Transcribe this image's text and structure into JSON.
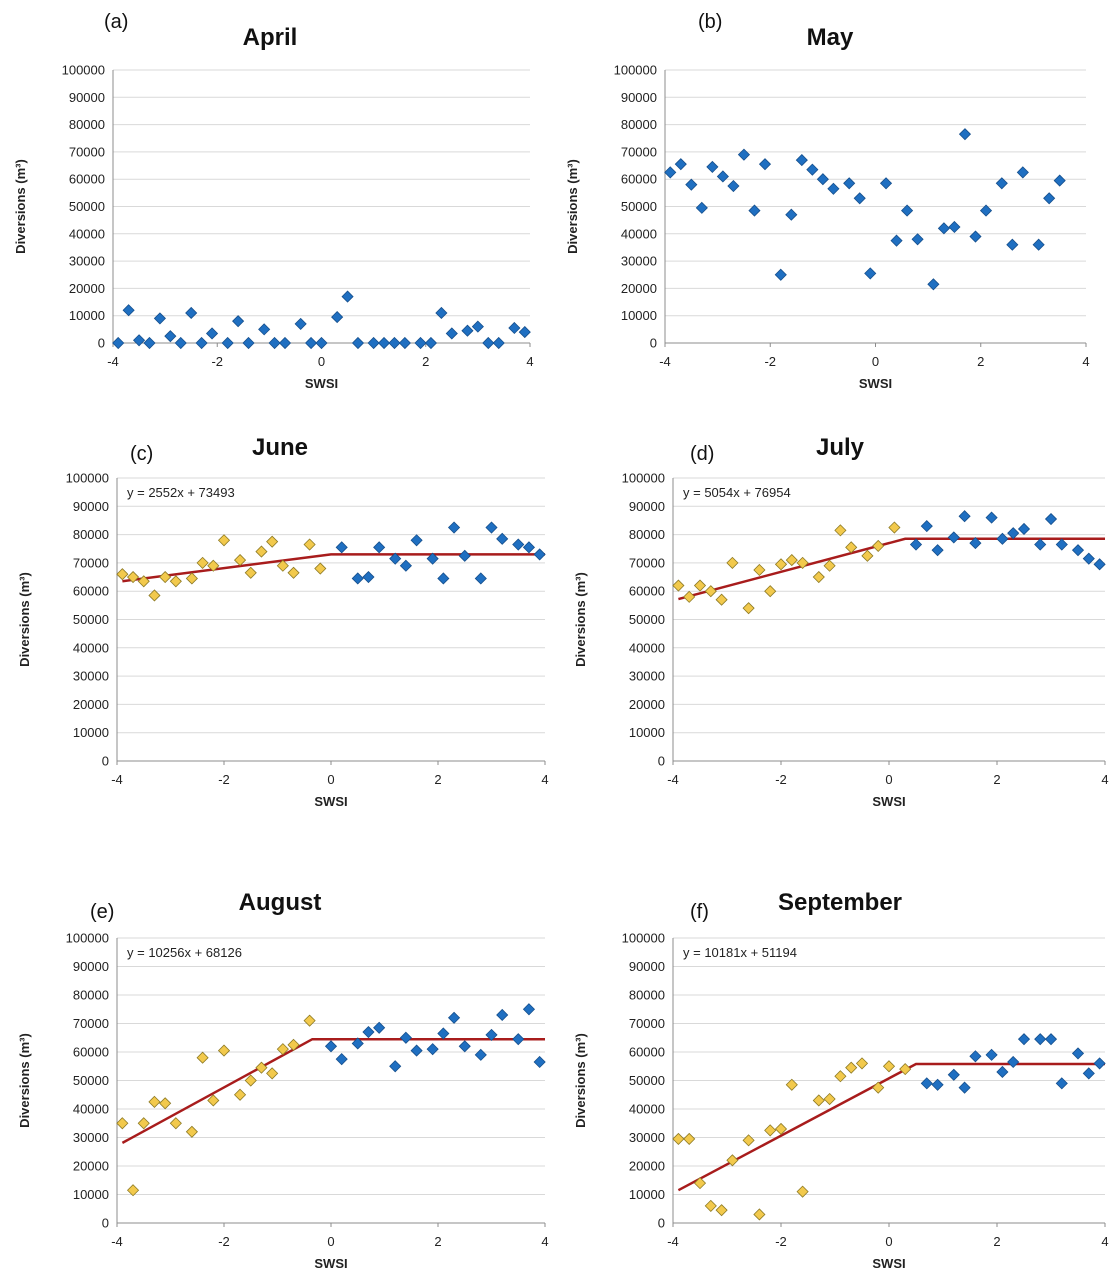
{
  "chart_data": [
    {
      "type": "scatter",
      "panel_label": "(a)",
      "title": "April",
      "xlabel": "SWSI",
      "ylabel": "Diversions (m³)",
      "xlim": [
        -4,
        4
      ],
      "ylim": [
        0,
        100000
      ],
      "xticks": [
        -4,
        -2,
        0,
        2,
        4
      ],
      "yticks": [
        0,
        10000,
        20000,
        30000,
        40000,
        50000,
        60000,
        70000,
        80000,
        90000,
        100000
      ],
      "grid": true,
      "equation": "",
      "series": [
        {
          "color": "#1f6fc1",
          "marker": "diamond",
          "points": [
            [
              -3.9,
              0
            ],
            [
              -3.7,
              12000
            ],
            [
              -3.5,
              1000
            ],
            [
              -3.3,
              0
            ],
            [
              -3.1,
              9000
            ],
            [
              -2.9,
              2500
            ],
            [
              -2.7,
              0
            ],
            [
              -2.5,
              11000
            ],
            [
              -2.3,
              0
            ],
            [
              -2.1,
              3500
            ],
            [
              -1.8,
              0
            ],
            [
              -1.6,
              8000
            ],
            [
              -1.4,
              0
            ],
            [
              -1.1,
              5000
            ],
            [
              -0.9,
              0
            ],
            [
              -0.7,
              0
            ],
            [
              -0.4,
              7000
            ],
            [
              -0.2,
              0
            ],
            [
              0.0,
              0
            ],
            [
              0.3,
              9500
            ],
            [
              0.5,
              17000
            ],
            [
              0.7,
              0
            ],
            [
              1.0,
              0
            ],
            [
              1.2,
              0
            ],
            [
              1.4,
              0
            ],
            [
              1.6,
              0
            ],
            [
              1.9,
              0
            ],
            [
              2.1,
              0
            ],
            [
              2.3,
              11000
            ],
            [
              2.5,
              3500
            ],
            [
              2.8,
              4500
            ],
            [
              3.0,
              6000
            ],
            [
              3.2,
              0
            ],
            [
              3.4,
              0
            ],
            [
              3.7,
              5500
            ],
            [
              3.9,
              4000
            ]
          ]
        }
      ]
    },
    {
      "type": "scatter",
      "panel_label": "(b)",
      "title": "May",
      "xlabel": "SWSI",
      "ylabel": "Diversions (m³)",
      "xlim": [
        -4,
        4
      ],
      "ylim": [
        0,
        100000
      ],
      "xticks": [
        -4,
        -2,
        0,
        2,
        4
      ],
      "yticks": [
        0,
        10000,
        20000,
        30000,
        40000,
        50000,
        60000,
        70000,
        80000,
        90000,
        100000
      ],
      "grid": true,
      "equation": "",
      "series": [
        {
          "color": "#1f6fc1",
          "marker": "diamond",
          "points": [
            [
              -3.9,
              62500
            ],
            [
              -3.7,
              65500
            ],
            [
              -3.5,
              58000
            ],
            [
              -3.3,
              49500
            ],
            [
              -3.1,
              64500
            ],
            [
              -2.9,
              61000
            ],
            [
              -2.7,
              57500
            ],
            [
              -2.5,
              69000
            ],
            [
              -2.3,
              48500
            ],
            [
              -2.1,
              65500
            ],
            [
              -1.8,
              25000
            ],
            [
              -1.6,
              47000
            ],
            [
              -1.4,
              67000
            ],
            [
              -1.2,
              63500
            ],
            [
              -1.0,
              60000
            ],
            [
              -0.8,
              56500
            ],
            [
              -0.5,
              58500
            ],
            [
              -0.3,
              53000
            ],
            [
              -0.1,
              25500
            ],
            [
              0.2,
              58500
            ],
            [
              0.4,
              37500
            ],
            [
              0.6,
              48500
            ],
            [
              0.8,
              38000
            ],
            [
              1.1,
              21500
            ],
            [
              1.3,
              42000
            ],
            [
              1.5,
              42500
            ],
            [
              1.7,
              76500
            ],
            [
              1.9,
              39000
            ],
            [
              2.1,
              48500
            ],
            [
              2.4,
              58500
            ],
            [
              2.6,
              36000
            ],
            [
              2.8,
              62500
            ],
            [
              3.1,
              36000
            ],
            [
              3.3,
              53000
            ],
            [
              3.5,
              59500
            ]
          ]
        }
      ]
    },
    {
      "type": "scatter",
      "panel_label": "(c)",
      "title": "June",
      "xlabel": "SWSI",
      "ylabel": "Diversions (m³)",
      "xlim": [
        -4,
        4
      ],
      "ylim": [
        0,
        100000
      ],
      "xticks": [
        -4,
        -2,
        0,
        2,
        4
      ],
      "yticks": [
        0,
        10000,
        20000,
        30000,
        40000,
        50000,
        60000,
        70000,
        80000,
        90000,
        100000
      ],
      "grid": true,
      "equation": "y = 2552x + 73493",
      "fit_line": [
        [
          -3.9,
          63540
        ],
        [
          0.0,
          73000
        ],
        [
          4.0,
          73000
        ]
      ],
      "series": [
        {
          "color": "#f2c94c",
          "marker": "diamond",
          "points": [
            [
              -3.9,
              66000
            ],
            [
              -3.7,
              65000
            ],
            [
              -3.5,
              63500
            ],
            [
              -3.3,
              58500
            ],
            [
              -3.1,
              65000
            ],
            [
              -2.9,
              63500
            ],
            [
              -2.6,
              64500
            ],
            [
              -2.4,
              70000
            ],
            [
              -2.2,
              69000
            ],
            [
              -2.0,
              78000
            ],
            [
              -1.7,
              71000
            ],
            [
              -1.5,
              66500
            ],
            [
              -1.3,
              74000
            ],
            [
              -1.1,
              77500
            ],
            [
              -0.9,
              69000
            ],
            [
              -0.7,
              66500
            ],
            [
              -0.4,
              76500
            ],
            [
              -0.2,
              68000
            ]
          ]
        },
        {
          "color": "#1f6fc1",
          "marker": "diamond",
          "points": [
            [
              0.2,
              75500
            ],
            [
              0.5,
              64500
            ],
            [
              0.7,
              65000
            ],
            [
              0.9,
              75500
            ],
            [
              1.2,
              71500
            ],
            [
              1.4,
              69000
            ],
            [
              1.6,
              78000
            ],
            [
              1.9,
              71500
            ],
            [
              2.1,
              64500
            ],
            [
              2.3,
              82500
            ],
            [
              2.5,
              72500
            ],
            [
              2.8,
              64500
            ],
            [
              3.0,
              82500
            ],
            [
              3.2,
              78500
            ],
            [
              3.5,
              76500
            ],
            [
              3.7,
              75500
            ],
            [
              3.9,
              73000
            ]
          ]
        }
      ]
    },
    {
      "type": "scatter",
      "panel_label": "(d)",
      "title": "July",
      "xlabel": "SWSI",
      "ylabel": "Diversions (m³)",
      "xlim": [
        -4,
        4
      ],
      "ylim": [
        0,
        100000
      ],
      "xticks": [
        -4,
        -2,
        0,
        2,
        4
      ],
      "yticks": [
        0,
        10000,
        20000,
        30000,
        40000,
        50000,
        60000,
        70000,
        80000,
        90000,
        100000
      ],
      "grid": true,
      "equation": "y = 5054x + 76954",
      "fit_line": [
        [
          -3.9,
          57200
        ],
        [
          0.3,
          78500
        ],
        [
          4.0,
          78500
        ]
      ],
      "series": [
        {
          "color": "#f2c94c",
          "marker": "diamond",
          "points": [
            [
              -3.9,
              62000
            ],
            [
              -3.7,
              58000
            ],
            [
              -3.5,
              62000
            ],
            [
              -3.3,
              60000
            ],
            [
              -3.1,
              57000
            ],
            [
              -2.9,
              70000
            ],
            [
              -2.6,
              54000
            ],
            [
              -2.4,
              67500
            ],
            [
              -2.2,
              60000
            ],
            [
              -2.0,
              69500
            ],
            [
              -1.8,
              71000
            ],
            [
              -1.6,
              70000
            ],
            [
              -1.3,
              65000
            ],
            [
              -1.1,
              69000
            ],
            [
              -0.9,
              81500
            ],
            [
              -0.7,
              75500
            ],
            [
              -0.4,
              72500
            ],
            [
              -0.2,
              76000
            ],
            [
              0.1,
              82500
            ]
          ]
        },
        {
          "color": "#1f6fc1",
          "marker": "diamond",
          "points": [
            [
              0.5,
              76500
            ],
            [
              0.7,
              83000
            ],
            [
              0.9,
              74500
            ],
            [
              1.2,
              79000
            ],
            [
              1.4,
              86500
            ],
            [
              1.6,
              77000
            ],
            [
              1.9,
              86000
            ],
            [
              2.1,
              78500
            ],
            [
              2.3,
              80500
            ],
            [
              2.5,
              82000
            ],
            [
              2.8,
              76500
            ],
            [
              3.0,
              85500
            ],
            [
              3.2,
              76500
            ],
            [
              3.5,
              74500
            ],
            [
              3.7,
              71500
            ],
            [
              3.9,
              69500
            ]
          ]
        }
      ]
    },
    {
      "type": "scatter",
      "panel_label": "(e)",
      "title": "August",
      "xlabel": "SWSI",
      "ylabel": "Diversions (m³)",
      "xlim": [
        -4,
        4
      ],
      "ylim": [
        0,
        100000
      ],
      "xticks": [
        -4,
        -2,
        0,
        2,
        4
      ],
      "yticks": [
        0,
        10000,
        20000,
        30000,
        40000,
        50000,
        60000,
        70000,
        80000,
        90000,
        100000
      ],
      "grid": true,
      "equation": "y = 10256x + 68126",
      "fit_line": [
        [
          -3.9,
          28100
        ],
        [
          -0.35,
          64500
        ],
        [
          4.0,
          64500
        ]
      ],
      "series": [
        {
          "color": "#f2c94c",
          "marker": "diamond",
          "points": [
            [
              -3.9,
              35000
            ],
            [
              -3.7,
              11500
            ],
            [
              -3.5,
              35000
            ],
            [
              -3.3,
              42500
            ],
            [
              -3.1,
              42000
            ],
            [
              -2.9,
              35000
            ],
            [
              -2.6,
              32000
            ],
            [
              -2.4,
              58000
            ],
            [
              -2.2,
              43000
            ],
            [
              -2.0,
              60500
            ],
            [
              -1.7,
              45000
            ],
            [
              -1.5,
              50000
            ],
            [
              -1.3,
              54500
            ],
            [
              -1.1,
              52500
            ],
            [
              -0.9,
              61000
            ],
            [
              -0.7,
              62500
            ],
            [
              -0.4,
              71000
            ]
          ]
        },
        {
          "color": "#1f6fc1",
          "marker": "diamond",
          "points": [
            [
              0.0,
              62000
            ],
            [
              0.2,
              57500
            ],
            [
              0.5,
              63000
            ],
            [
              0.7,
              67000
            ],
            [
              0.9,
              68500
            ],
            [
              1.2,
              55000
            ],
            [
              1.4,
              65000
            ],
            [
              1.6,
              60500
            ],
            [
              1.9,
              61000
            ],
            [
              2.1,
              66500
            ],
            [
              2.3,
              72000
            ],
            [
              2.5,
              62000
            ],
            [
              2.8,
              59000
            ],
            [
              3.0,
              66000
            ],
            [
              3.2,
              73000
            ],
            [
              3.5,
              64500
            ],
            [
              3.7,
              75000
            ],
            [
              3.9,
              56500
            ]
          ]
        }
      ]
    },
    {
      "type": "scatter",
      "panel_label": "(f)",
      "title": "September",
      "xlabel": "SWSI",
      "ylabel": "Diversions (m³)",
      "xlim": [
        -4,
        4
      ],
      "ylim": [
        0,
        100000
      ],
      "xticks": [
        -4,
        -2,
        0,
        2,
        4
      ],
      "yticks": [
        0,
        10000,
        20000,
        30000,
        40000,
        50000,
        60000,
        70000,
        80000,
        90000,
        100000
      ],
      "grid": true,
      "equation": "y = 10181x + 51194",
      "fit_line": [
        [
          -3.9,
          11500
        ],
        [
          0.5,
          55800
        ],
        [
          4.0,
          55800
        ]
      ],
      "series": [
        {
          "color": "#f2c94c",
          "marker": "diamond",
          "points": [
            [
              -3.9,
              29500
            ],
            [
              -3.7,
              29500
            ],
            [
              -3.5,
              14000
            ],
            [
              -3.3,
              6000
            ],
            [
              -3.1,
              4500
            ],
            [
              -2.9,
              22000
            ],
            [
              -2.6,
              29000
            ],
            [
              -2.4,
              3000
            ],
            [
              -2.2,
              32500
            ],
            [
              -2.0,
              33000
            ],
            [
              -1.8,
              48500
            ],
            [
              -1.6,
              11000
            ],
            [
              -1.3,
              43000
            ],
            [
              -1.1,
              43500
            ],
            [
              -0.9,
              51500
            ],
            [
              -0.7,
              54500
            ],
            [
              -0.5,
              56000
            ],
            [
              -0.2,
              47500
            ],
            [
              0.0,
              55000
            ],
            [
              0.3,
              54000
            ]
          ]
        },
        {
          "color": "#1f6fc1",
          "marker": "diamond",
          "points": [
            [
              0.7,
              49000
            ],
            [
              0.9,
              48500
            ],
            [
              1.2,
              52000
            ],
            [
              1.4,
              47500
            ],
            [
              1.6,
              58500
            ],
            [
              1.9,
              59000
            ],
            [
              2.1,
              53000
            ],
            [
              2.3,
              56500
            ],
            [
              2.5,
              64500
            ],
            [
              2.8,
              64500
            ],
            [
              3.0,
              64500
            ],
            [
              3.2,
              49000
            ],
            [
              3.5,
              59500
            ],
            [
              3.7,
              52500
            ],
            [
              3.9,
              56000
            ]
          ]
        }
      ]
    }
  ]
}
